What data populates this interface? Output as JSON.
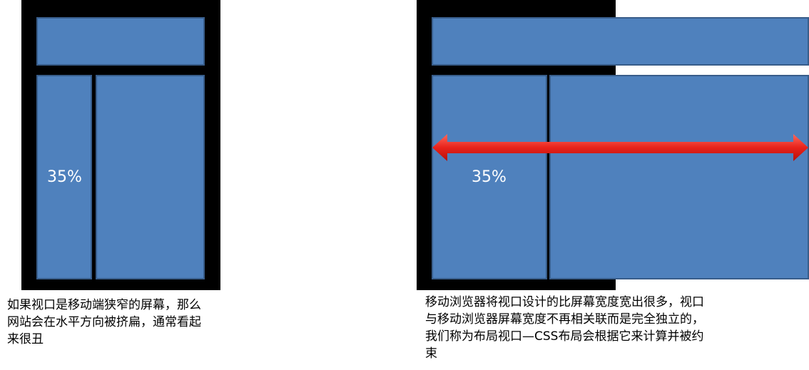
{
  "left_panel": {
    "column_label": "35%",
    "caption": "如果视口是移动端狭窄的屏幕，那么\n网站会在水平方向被挤扁，通常看起\n来很丑"
  },
  "right_panel": {
    "column_label": "35%",
    "caption": "移动浏览器将视口设计的比屏幕宽度宽出很多，视口\n与移动浏览器屏幕宽度不再相关联而是完全独立的，\n我们称为布局视口—CSS布局会根据它来计算并被约\n束"
  },
  "colors": {
    "phone": "#000000",
    "block_fill": "#4f81bd",
    "block_border": "#385d8a",
    "arrow": "#e8231b"
  }
}
